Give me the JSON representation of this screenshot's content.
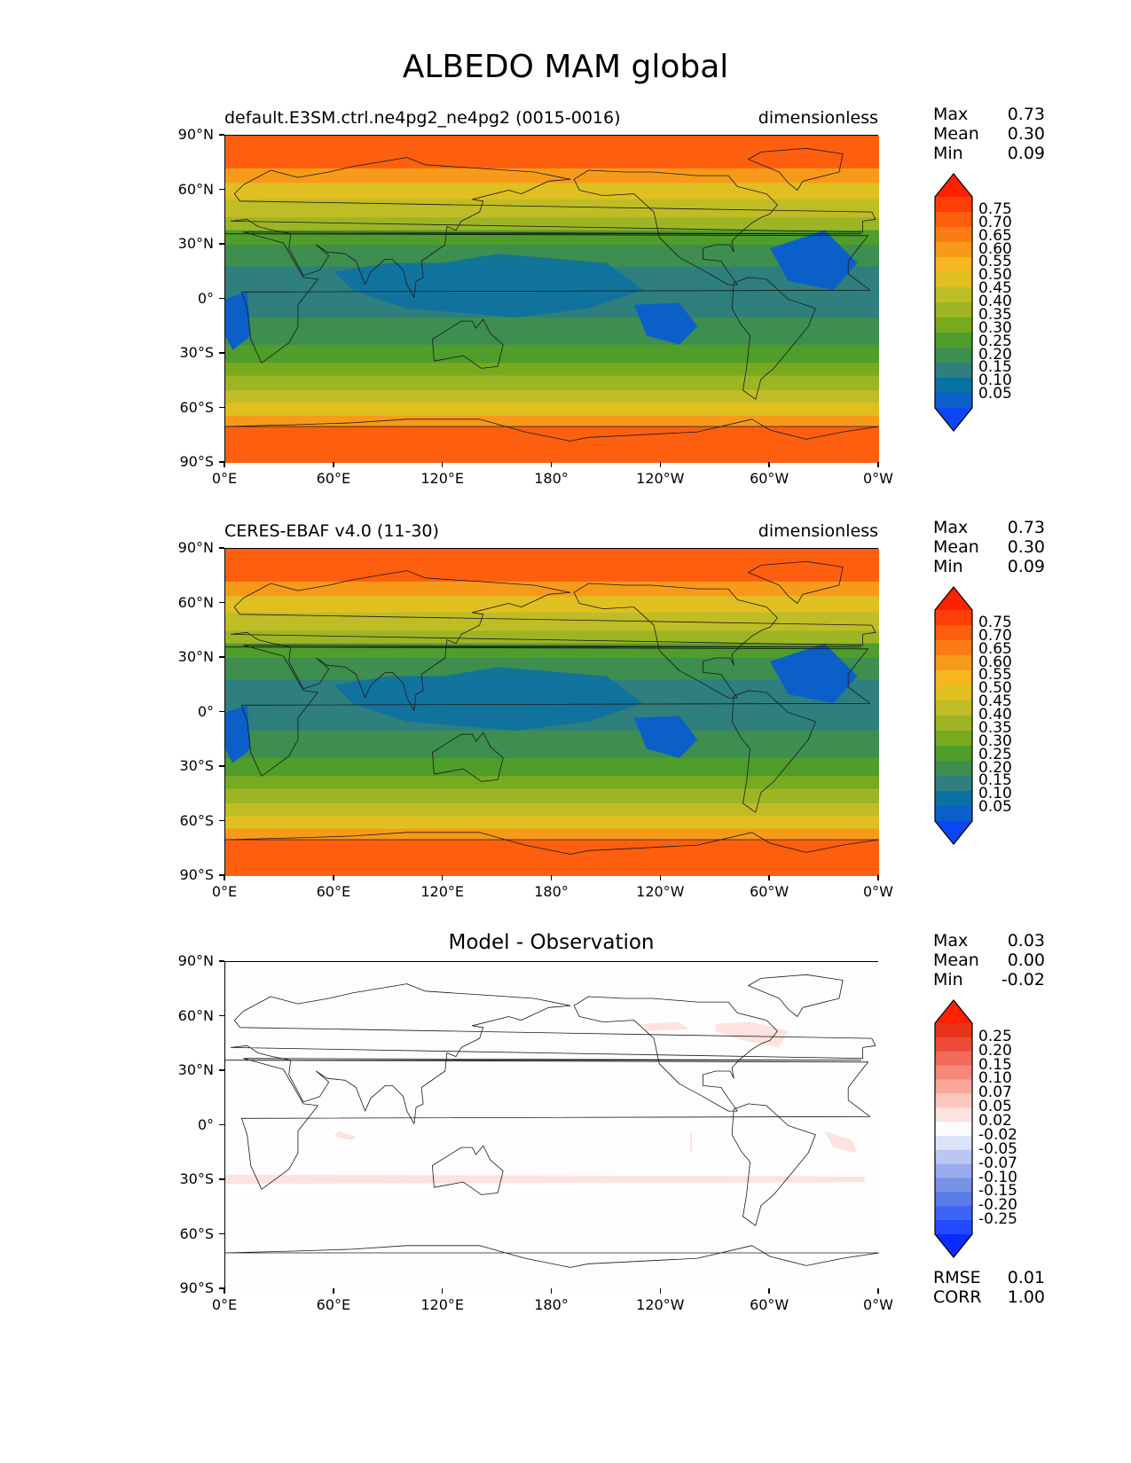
{
  "figure_title": "ALBEDO MAM global",
  "colors": {
    "seq": [
      "#0d47f5",
      "#0b5fc8",
      "#0a71a3",
      "#2e7f7e",
      "#3d8e4f",
      "#4f9d2a",
      "#78aa20",
      "#9db525",
      "#bfbd25",
      "#e0bf20",
      "#f6b61f",
      "#f79a1a",
      "#fb7c15",
      "#fd5f0f",
      "#ff3d08",
      "#ff2200"
    ],
    "div": [
      "#0b2cff",
      "#2349ff",
      "#3e63f7",
      "#5a7ce8",
      "#7892e6",
      "#9aaaee",
      "#bcc6f3",
      "#dde3f8",
      "#fbfbfb",
      "#fde2de",
      "#fbc6bd",
      "#f8a79a",
      "#f5887a",
      "#f16a5a",
      "#ec4b38",
      "#e93319",
      "#ff2200"
    ]
  },
  "lat_ticks": [
    "90°N",
    "60°N",
    "30°N",
    "0°",
    "30°S",
    "60°S",
    "90°S"
  ],
  "lon_ticks": [
    "0°E",
    "60°E",
    "120°E",
    "180°",
    "120°W",
    "60°W",
    "0°W"
  ],
  "panels": [
    {
      "id": "model",
      "title_left": "default.E3SM.ctrl.ne4pg2_ne4pg2 (0015-0016)",
      "title_right": "dimensionless",
      "title_center": "",
      "stats": [
        {
          "label": "Max",
          "value": "0.73"
        },
        {
          "label": "Mean",
          "value": "0.30"
        },
        {
          "label": "Min",
          "value": "0.09"
        }
      ],
      "colorbar_labels": [
        "0.75",
        "0.70",
        "0.65",
        "0.60",
        "0.55",
        "0.50",
        "0.45",
        "0.40",
        "0.35",
        "0.30",
        "0.25",
        "0.20",
        "0.15",
        "0.10",
        "0.05"
      ],
      "footer_stats": []
    },
    {
      "id": "obs",
      "title_left": "CERES-EBAF v4.0 (11-30)",
      "title_right": "dimensionless",
      "title_center": "",
      "stats": [
        {
          "label": "Max",
          "value": "0.73"
        },
        {
          "label": "Mean",
          "value": "0.30"
        },
        {
          "label": "Min",
          "value": "0.09"
        }
      ],
      "colorbar_labels": [
        "0.75",
        "0.70",
        "0.65",
        "0.60",
        "0.55",
        "0.50",
        "0.45",
        "0.40",
        "0.35",
        "0.30",
        "0.25",
        "0.20",
        "0.15",
        "0.10",
        "0.05"
      ],
      "footer_stats": []
    },
    {
      "id": "diff",
      "title_left": "",
      "title_right": "",
      "title_center": "Model - Observation",
      "stats": [
        {
          "label": "Max",
          "value": "0.03"
        },
        {
          "label": "Mean",
          "value": "0.00"
        },
        {
          "label": "Min",
          "value": "-0.02"
        }
      ],
      "colorbar_labels": [
        "0.25",
        "0.20",
        "0.15",
        "0.10",
        "0.07",
        "0.05",
        "0.02",
        "-0.02",
        "-0.05",
        "-0.07",
        "-0.10",
        "-0.15",
        "-0.20",
        "-0.25"
      ],
      "footer_stats": [
        {
          "label": "RMSE",
          "value": "0.01"
        },
        {
          "label": "CORR",
          "value": "1.00"
        }
      ]
    }
  ]
}
